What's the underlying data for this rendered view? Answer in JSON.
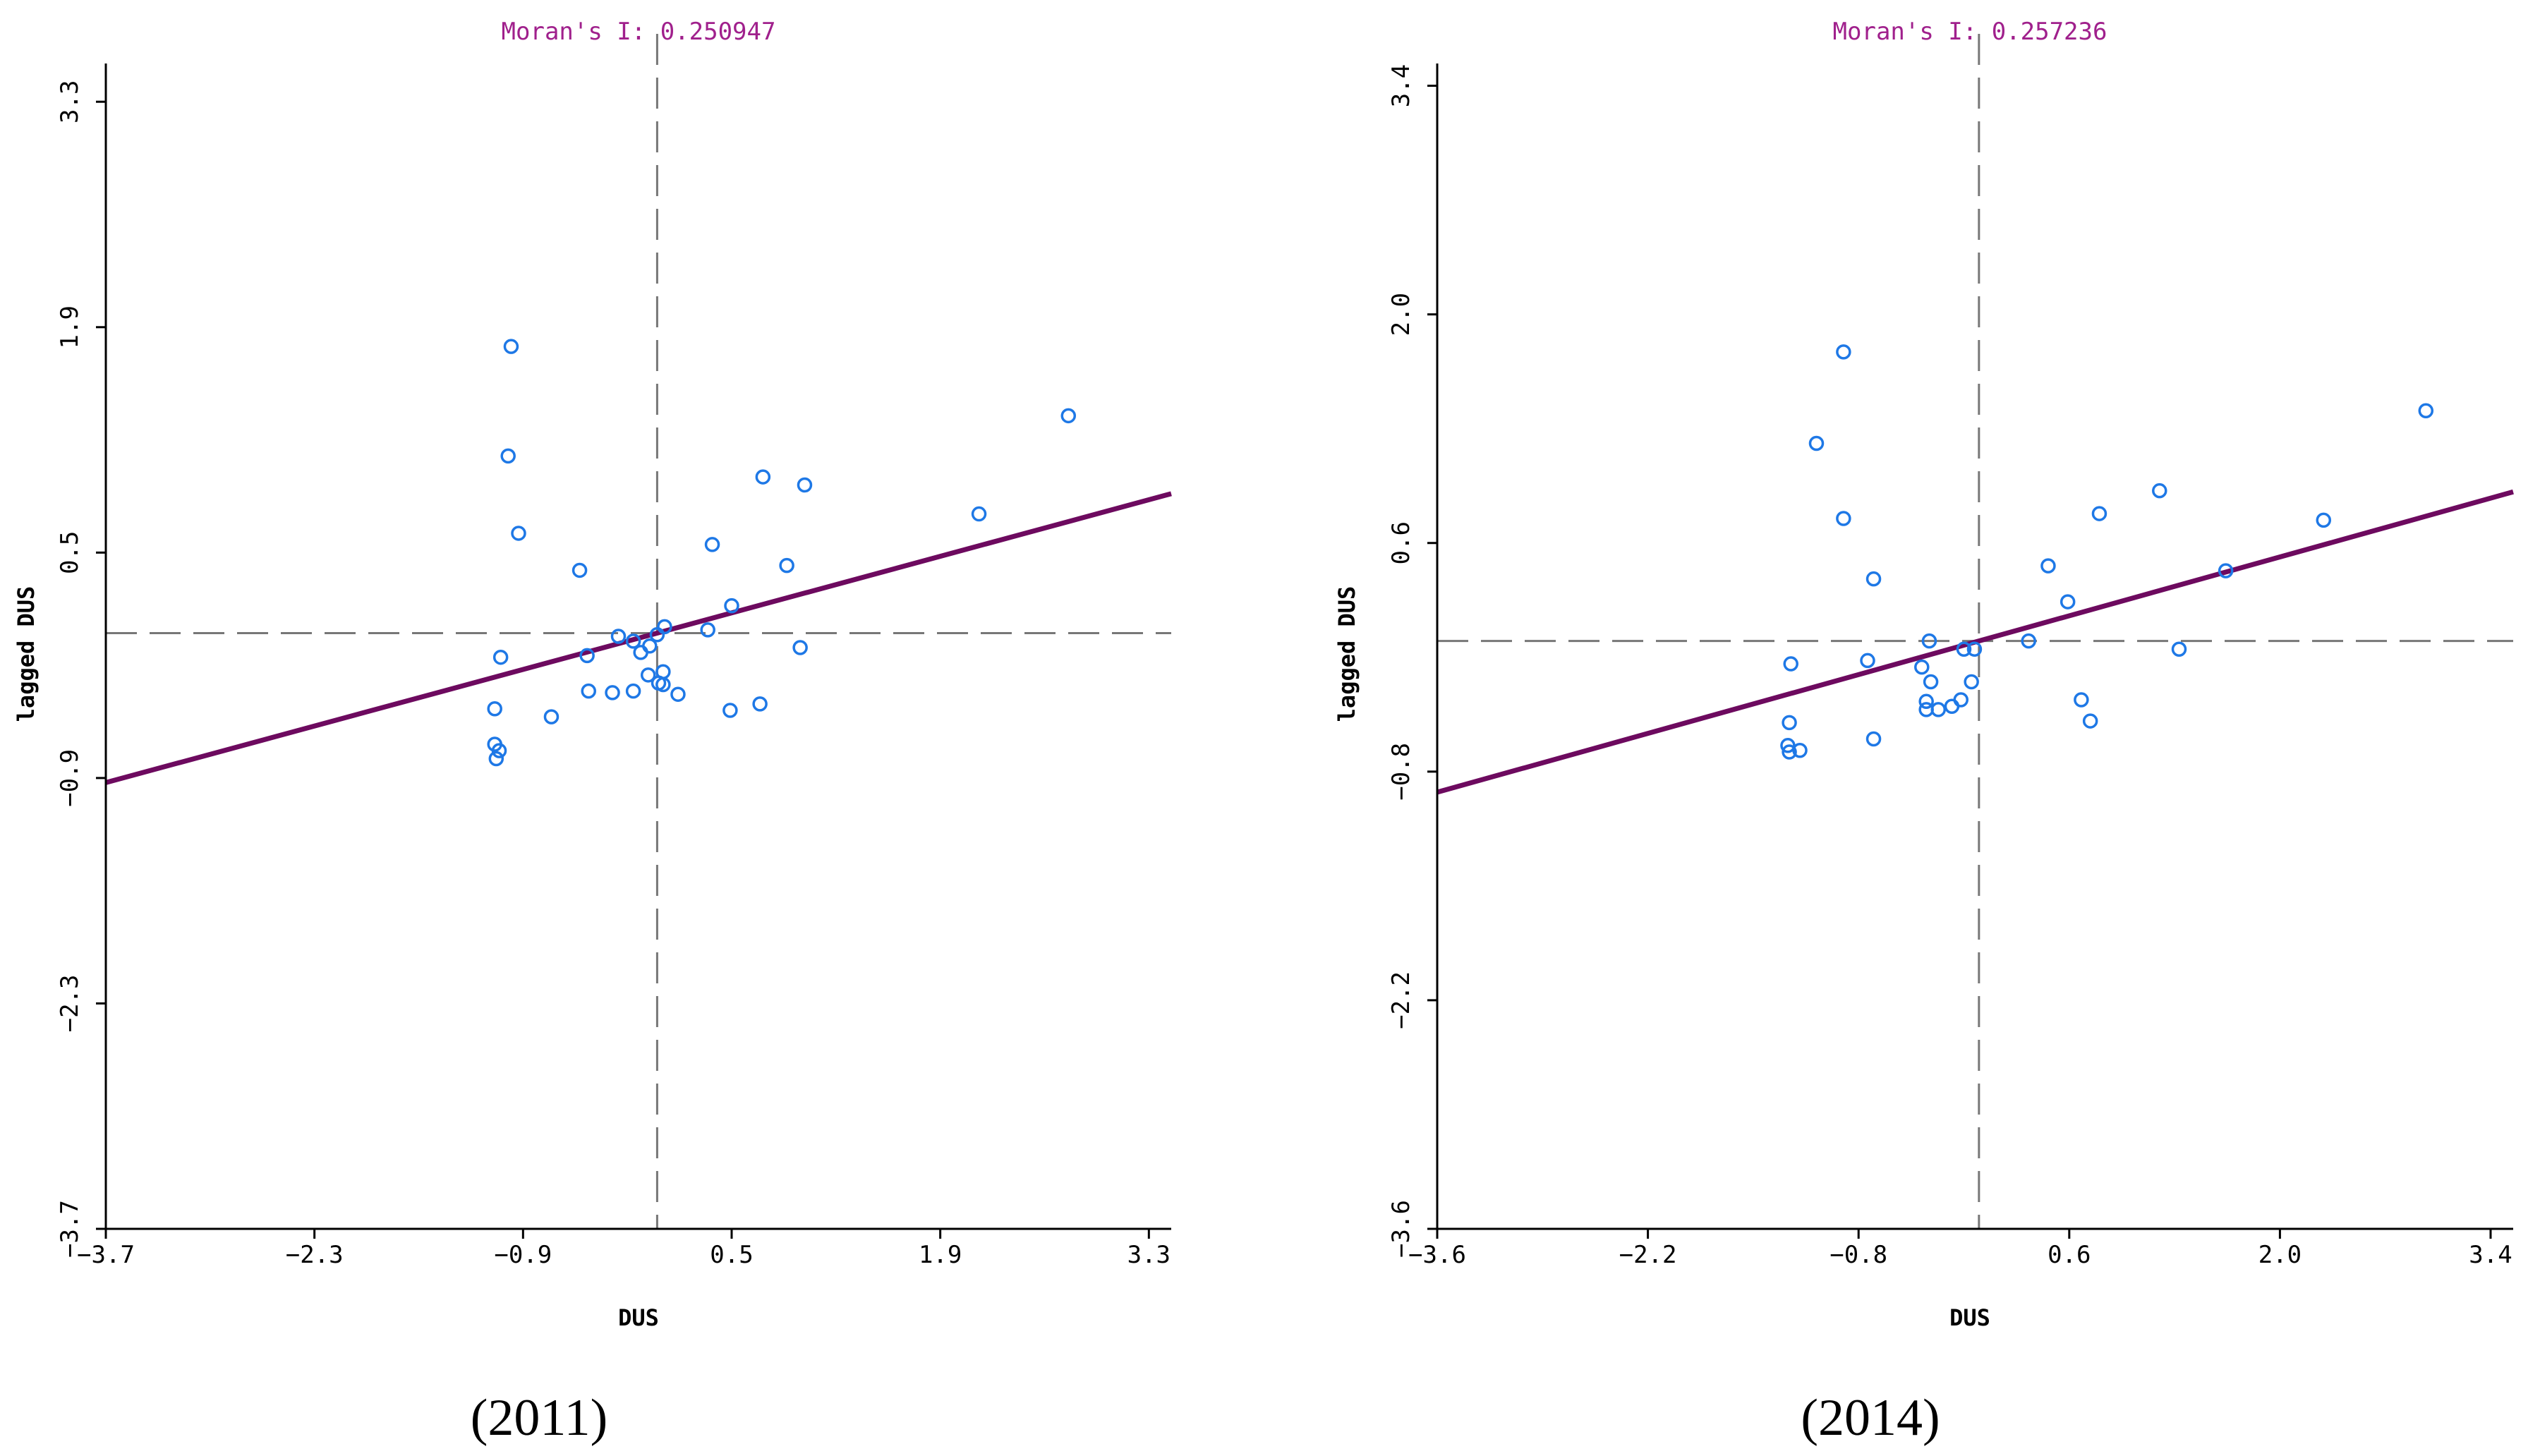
{
  "colors": {
    "points": "#1e78e6",
    "fit_line": "#6d0a5f",
    "axis": "#000000",
    "reference_lines": "#777777",
    "moran_text": "#a0208c"
  },
  "chart_data": [
    {
      "type": "scatter",
      "title": "Moran's I: 0.250947",
      "caption": "(2011)",
      "xlabel": "DUS",
      "ylabel": "lagged DUS",
      "xlim": [
        -3.7,
        3.45
      ],
      "ylim": [
        -3.7,
        3.45
      ],
      "xticks": [
        -3.7,
        -2.3,
        -0.9,
        0.5,
        1.9,
        3.3
      ],
      "xtick_labels": [
        "−3.7",
        "−2.3",
        "−0.9",
        "0.5",
        "1.9",
        "3.3"
      ],
      "yticks": [
        -3.7,
        -2.3,
        -0.9,
        0.5,
        1.9,
        3.3
      ],
      "ytick_labels": [
        "−3.7",
        "−2.3",
        "−0.9",
        "0.5",
        "1.9",
        "3.3"
      ],
      "mean_x": 0.0,
      "mean_y": 0.0,
      "fit_line": {
        "slope": 0.250947,
        "intercept": 0.0
      },
      "points": [
        [
          -0.98,
          1.78
        ],
        [
          -1.0,
          1.1
        ],
        [
          -0.93,
          0.62
        ],
        [
          -0.52,
          0.39
        ],
        [
          0.37,
          0.55
        ],
        [
          0.5,
          0.17
        ],
        [
          0.34,
          0.02
        ],
        [
          0.05,
          0.04
        ],
        [
          0.0,
          -0.01
        ],
        [
          -0.16,
          -0.05
        ],
        [
          -0.11,
          -0.12
        ],
        [
          -0.47,
          -0.14
        ],
        [
          -0.26,
          -0.02
        ],
        [
          0.04,
          -0.24
        ],
        [
          -0.06,
          -0.26
        ],
        [
          0.01,
          -0.31
        ],
        [
          0.14,
          -0.38
        ],
        [
          -0.3,
          -0.37
        ],
        [
          -0.16,
          -0.36
        ],
        [
          -0.46,
          -0.36
        ],
        [
          0.49,
          -0.48
        ],
        [
          -0.71,
          -0.52
        ],
        [
          -1.09,
          -0.47
        ],
        [
          -1.09,
          -0.69
        ],
        [
          -1.06,
          -0.73
        ],
        [
          -1.08,
          -0.78
        ],
        [
          -1.05,
          -0.15
        ],
        [
          0.87,
          0.42
        ],
        [
          0.71,
          0.97
        ],
        [
          0.99,
          0.92
        ],
        [
          2.16,
          0.74
        ],
        [
          2.76,
          1.35
        ],
        [
          0.96,
          -0.09
        ],
        [
          0.69,
          -0.44
        ],
        [
          0.04,
          -0.32
        ],
        [
          -0.05,
          -0.08
        ]
      ]
    },
    {
      "type": "scatter",
      "title": "Moran's I: 0.257236",
      "caption": "(2014)",
      "xlabel": "DUS",
      "ylabel": "lagged DUS",
      "xlim": [
        -3.6,
        3.55
      ],
      "ylim": [
        -3.6,
        3.45
      ],
      "xticks": [
        -3.6,
        -2.2,
        -0.8,
        0.6,
        2.0,
        3.4
      ],
      "xtick_labels": [
        "−3.6",
        "−2.2",
        "−0.8",
        "0.6",
        "2.0",
        "3.4"
      ],
      "yticks": [
        -3.6,
        -2.2,
        -0.8,
        0.6,
        2.0,
        3.4
      ],
      "ytick_labels": [
        "−3.6",
        "−2.2",
        "−0.8",
        "0.6",
        "2.0",
        "3.4"
      ],
      "mean_x": 0.0,
      "mean_y": 0.0,
      "fit_line": {
        "slope": 0.257236,
        "intercept": 0.0
      },
      "points": [
        [
          -0.9,
          1.77
        ],
        [
          -1.08,
          1.21
        ],
        [
          -0.9,
          0.75
        ],
        [
          -0.7,
          0.38
        ],
        [
          0.46,
          0.46
        ],
        [
          0.59,
          0.24
        ],
        [
          0.8,
          0.78
        ],
        [
          1.2,
          0.92
        ],
        [
          1.64,
          0.43
        ],
        [
          2.29,
          0.74
        ],
        [
          2.97,
          1.41
        ],
        [
          1.33,
          -0.05
        ],
        [
          0.33,
          0.0
        ],
        [
          -0.33,
          0.0
        ],
        [
          -0.1,
          -0.05
        ],
        [
          -0.03,
          -0.05
        ],
        [
          -0.38,
          -0.16
        ],
        [
          -0.74,
          -0.12
        ],
        [
          -1.25,
          -0.14
        ],
        [
          -0.32,
          -0.25
        ],
        [
          -0.35,
          -0.37
        ],
        [
          -0.35,
          -0.42
        ],
        [
          -0.27,
          -0.42
        ],
        [
          -0.18,
          -0.4
        ],
        [
          -0.12,
          -0.36
        ],
        [
          -0.05,
          -0.25
        ],
        [
          0.68,
          -0.36
        ],
        [
          0.74,
          -0.49
        ],
        [
          -0.7,
          -0.6
        ],
        [
          -1.26,
          -0.5
        ],
        [
          -1.27,
          -0.64
        ],
        [
          -1.26,
          -0.68
        ],
        [
          -1.19,
          -0.67
        ]
      ]
    }
  ]
}
